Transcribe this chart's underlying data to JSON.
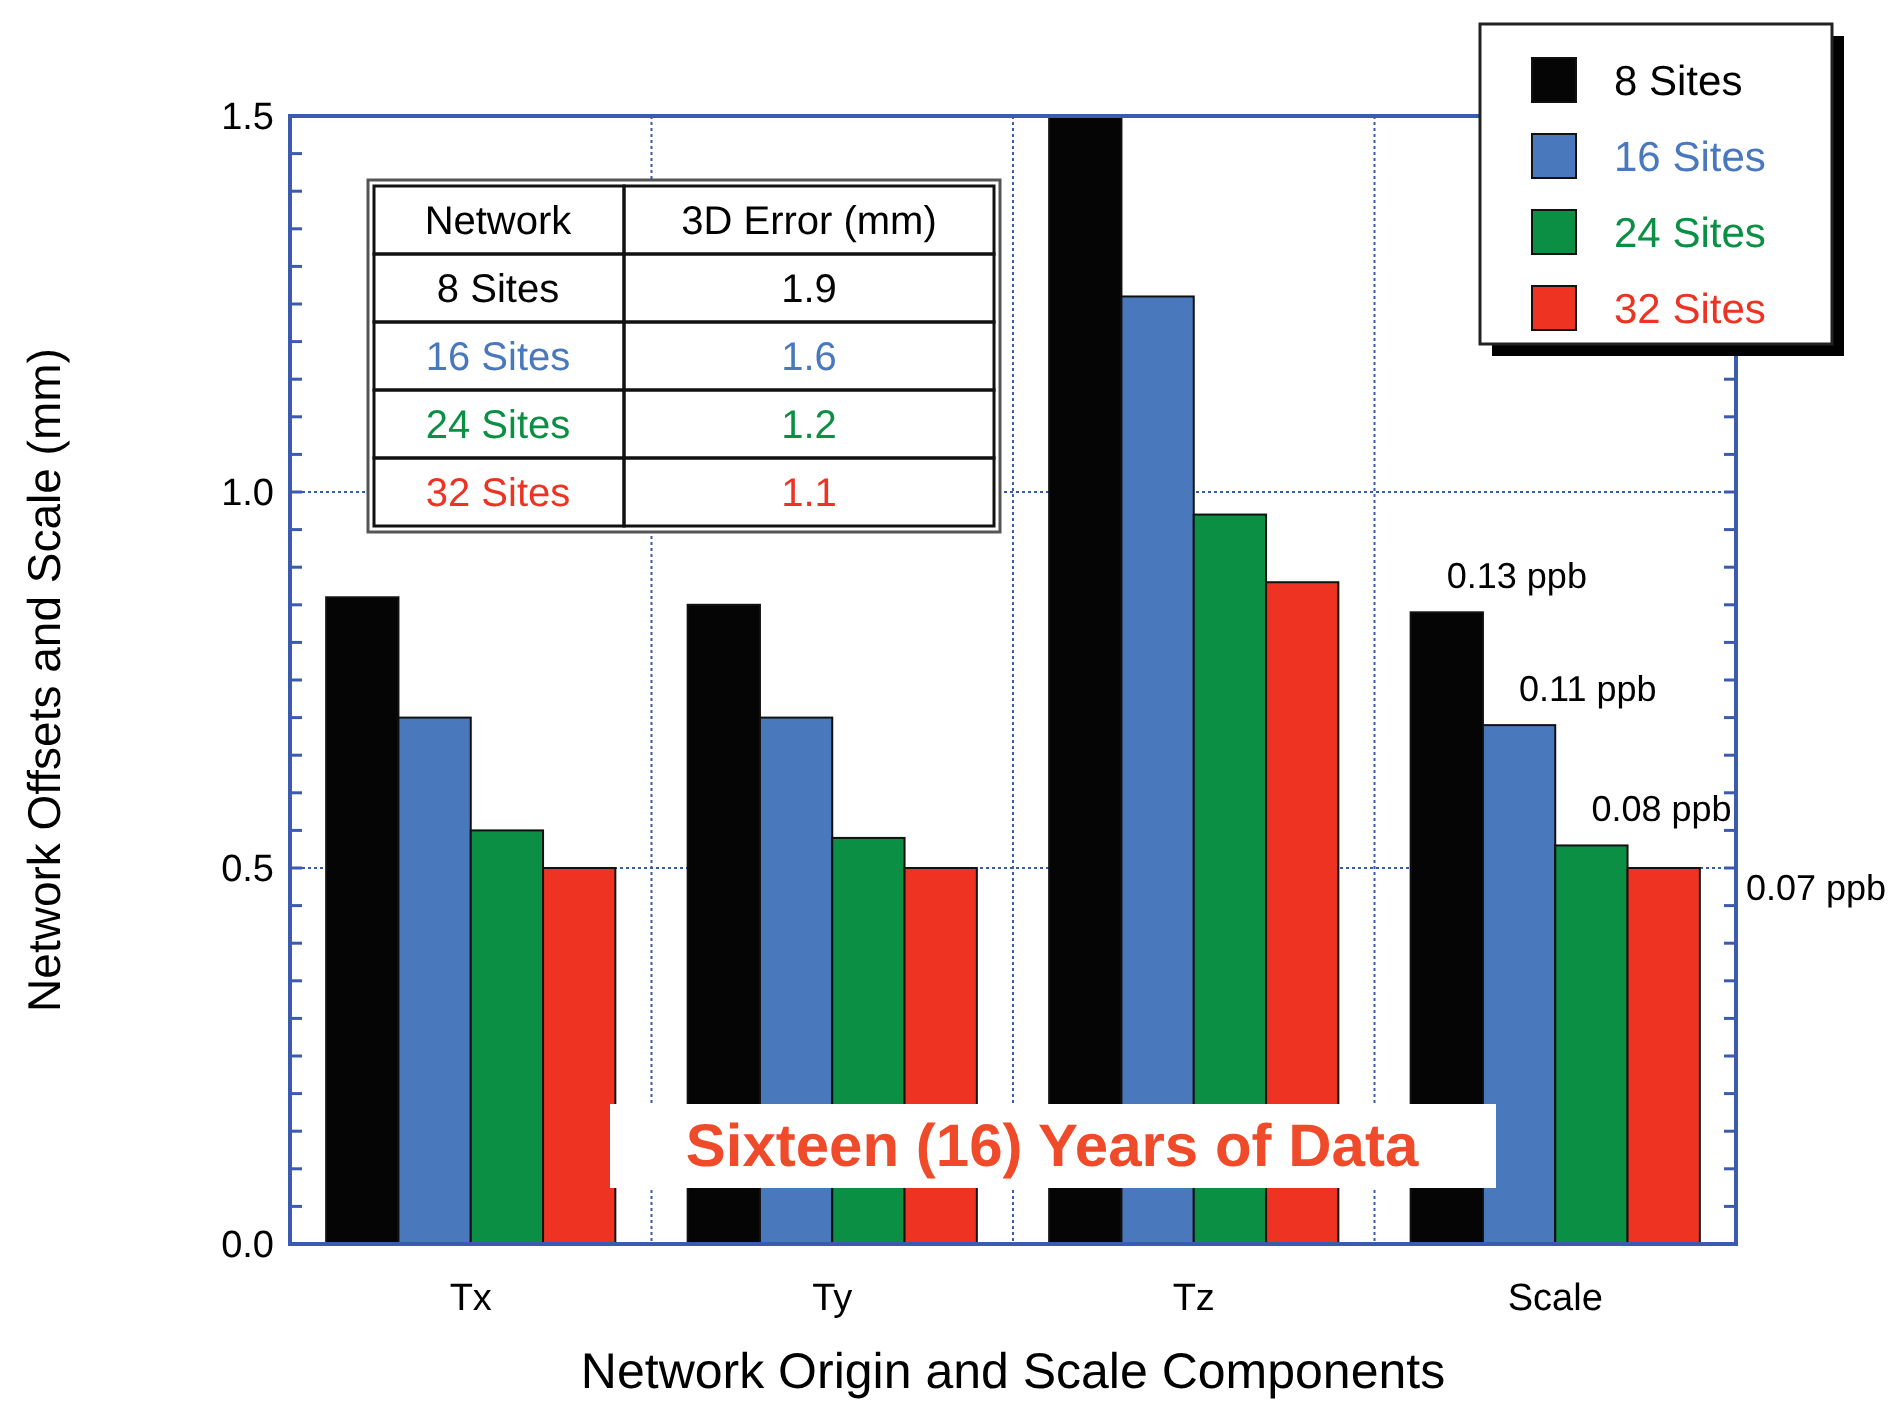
{
  "chart_data": {
    "type": "bar",
    "xlabel": "Network Origin and Scale Components",
    "ylabel": "Network Offsets and Scale (mm)",
    "categories": [
      "Tx",
      "Ty",
      "Tz",
      "Scale"
    ],
    "series": [
      {
        "name": "8 Sites",
        "color": "#050505",
        "values": [
          0.86,
          0.85,
          1.5,
          0.84
        ]
      },
      {
        "name": "16 Sites",
        "color": "#4a78bd",
        "values": [
          0.7,
          0.7,
          1.26,
          0.69
        ]
      },
      {
        "name": "24 Sites",
        "color": "#0a8f44",
        "values": [
          0.55,
          0.54,
          0.97,
          0.53
        ]
      },
      {
        "name": "32 Sites",
        "color": "#ef3323",
        "values": [
          0.5,
          0.5,
          0.88,
          0.5
        ]
      }
    ],
    "ylim": [
      0,
      1.5
    ],
    "yticks": [
      {
        "value": 0,
        "label": "0.0"
      },
      {
        "value": 0.05,
        "label": null
      },
      {
        "value": 0.1,
        "label": null
      },
      {
        "value": 0.15,
        "label": null
      },
      {
        "value": 0.2,
        "label": null
      },
      {
        "value": 0.25,
        "label": null
      },
      {
        "value": 0.3,
        "label": null
      },
      {
        "value": 0.35,
        "label": null
      },
      {
        "value": 0.4,
        "label": null
      },
      {
        "value": 0.45,
        "label": null
      },
      0.5,
      {
        "value": 0.55,
        "label": null
      },
      {
        "value": 0.6,
        "label": null
      },
      {
        "value": 0.65,
        "label": null
      },
      {
        "value": 0.7,
        "label": null
      },
      {
        "value": 0.75,
        "label": null
      },
      {
        "value": 0.8,
        "label": null
      },
      {
        "value": 0.85,
        "label": null
      },
      {
        "value": 0.9,
        "label": null
      },
      {
        "value": 0.95,
        "label": null
      },
      {
        "value": 1.0,
        "label": "1.0"
      },
      {
        "value": 1.05,
        "label": null
      },
      {
        "value": 1.1,
        "label": null
      },
      {
        "value": 1.15,
        "label": null
      },
      {
        "value": 1.2,
        "label": null
      },
      {
        "value": 1.25,
        "label": null
      },
      {
        "value": 1.3,
        "label": null
      },
      {
        "value": 1.35,
        "label": null
      },
      {
        "value": 1.4,
        "label": null
      },
      {
        "value": 1.45,
        "label": null
      },
      1.5
    ],
    "grid": true,
    "legend": "top right",
    "annotations": [
      "Sixteen (16) Years of Data",
      "0.13 ppb",
      "0.11 ppb",
      "0.08 ppb",
      "0.07 ppb",
      "Network",
      "3D Error (mm)",
      "8 Sites",
      "1.9",
      "16 Sites",
      "1.6",
      "24 Sites",
      "1.2",
      "32 Sites",
      "1.1"
    ]
  }
}
